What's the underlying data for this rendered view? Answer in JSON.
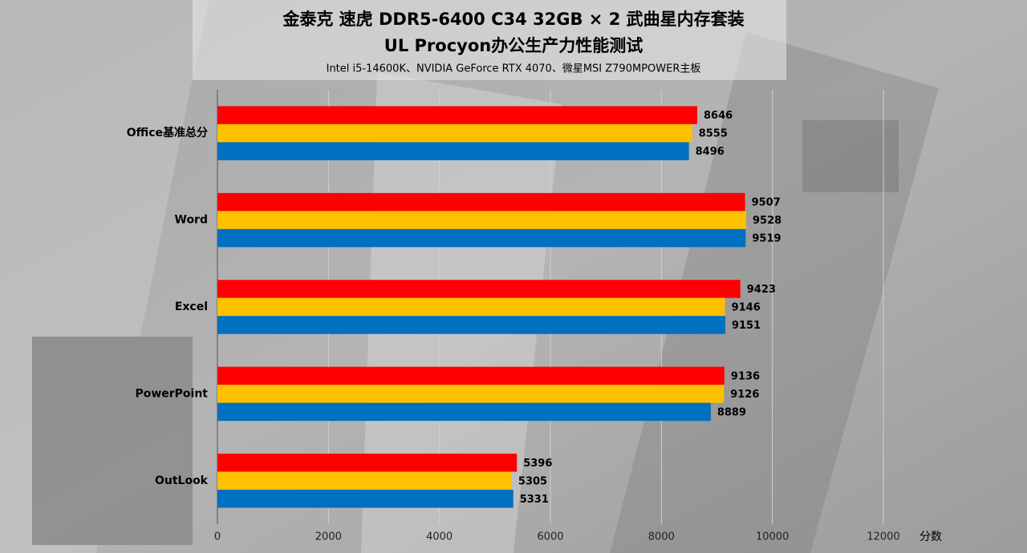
{
  "chart_data": {
    "type": "bar",
    "orientation": "horizontal",
    "title": [
      "金泰克 速虎 DDR5-6400  C34 32GB × 2 武曲星内存套装",
      "UL Procyon办公生产力性能测试"
    ],
    "subtitle": "Intel i5-14600K、NVIDIA GeForce RTX 4070、微星MSI Z790MPOWER主板",
    "x_label": "分数",
    "categories": [
      "Office基准总分",
      "Word",
      "Excel",
      "PowerPoint",
      "OutLook"
    ],
    "series": [
      {
        "color": "#ff0000",
        "values": [
          8646,
          9507,
          9423,
          9136,
          5396
        ]
      },
      {
        "color": "#ffc000",
        "values": [
          8555,
          9528,
          9146,
          9126,
          5305
        ]
      },
      {
        "color": "#0070c0",
        "values": [
          8496,
          9519,
          9151,
          8889,
          5331
        ]
      }
    ],
    "xlim": [
      0,
      12000
    ],
    "xticks": [
      0,
      2000,
      4000,
      6000,
      8000,
      10000,
      12000
    ],
    "grid": true
  }
}
